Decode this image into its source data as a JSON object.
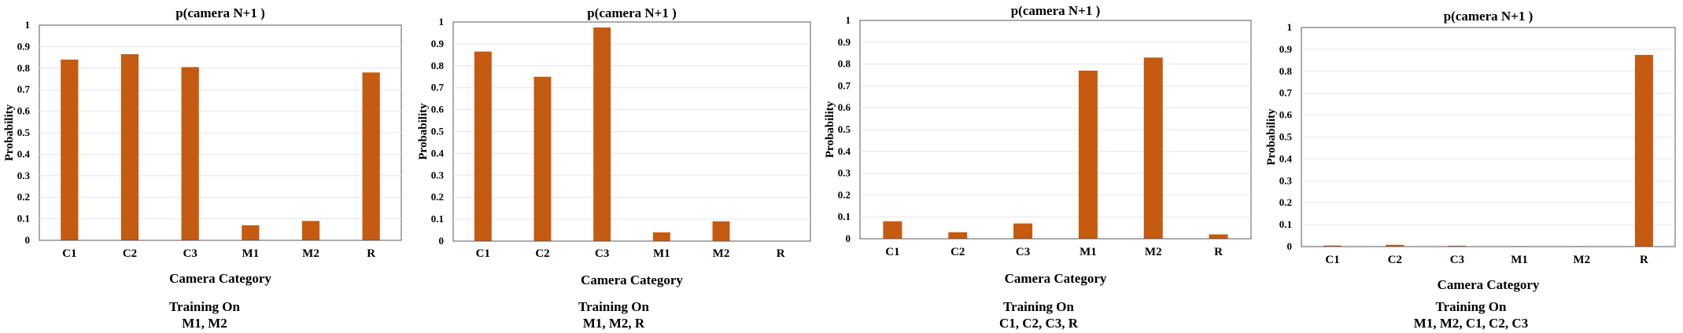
{
  "chart_data": [
    {
      "type": "bar",
      "title": "p(camera N+1 )",
      "xlabel": "Camera Category",
      "ylabel": "Probability",
      "categories": [
        "C1",
        "C2",
        "C3",
        "M1",
        "M2",
        "R"
      ],
      "values": [
        0.84,
        0.865,
        0.805,
        0.07,
        0.09,
        0.78
      ],
      "ylim": [
        0,
        1
      ],
      "yticks": [
        "0",
        "0.1",
        "0.2",
        "0.3",
        "0.4",
        "0.5",
        "0.6",
        "0.7",
        "0.8",
        "0.9",
        "1"
      ],
      "grid": true,
      "caption": [
        "Training On",
        "M1, M2"
      ],
      "bar_color": "#c55a11"
    },
    {
      "type": "bar",
      "title": "p(camera N+1 )",
      "xlabel": "Camera Category",
      "ylabel": "Probability",
      "categories": [
        "C1",
        "C2",
        "C3",
        "M1",
        "M2",
        "R"
      ],
      "values": [
        0.865,
        0.75,
        0.975,
        0.04,
        0.09,
        0.0
      ],
      "ylim": [
        0,
        1
      ],
      "yticks": [
        "0",
        "0.1",
        "0.2",
        "0.3",
        "0.4",
        "0.5",
        "0.6",
        "0.7",
        "0.8",
        "0.9",
        "1"
      ],
      "grid": true,
      "caption": [
        "Training On",
        "M1, M2, R"
      ],
      "bar_color": "#c55a11"
    },
    {
      "type": "bar",
      "title": "p(camera N+1 )",
      "xlabel": "Camera Category",
      "ylabel": "Probability",
      "categories": [
        "C1",
        "C2",
        "C3",
        "M1",
        "M2",
        "R"
      ],
      "values": [
        0.08,
        0.03,
        0.07,
        0.77,
        0.83,
        0.02
      ],
      "ylim": [
        0,
        1
      ],
      "yticks": [
        "0",
        "0.1",
        "0.2",
        "0.3",
        "0.4",
        "0.5",
        "0.6",
        "0.7",
        "0.8",
        "0.9",
        "1"
      ],
      "grid": true,
      "caption": [
        "Training On",
        "C1, C2, C3, R"
      ],
      "bar_color": "#c55a11"
    },
    {
      "type": "bar",
      "title": "p(camera N+1 )",
      "xlabel": "Camera Category",
      "ylabel": "Probability",
      "categories": [
        "C1",
        "C2",
        "C3",
        "M1",
        "M2",
        "R"
      ],
      "values": [
        0.005,
        0.008,
        0.004,
        0.002,
        0.002,
        0.875
      ],
      "ylim": [
        0,
        1
      ],
      "yticks": [
        "0",
        "0.1",
        "0.2",
        "0.3",
        "0.4",
        "0.5",
        "0.6",
        "0.7",
        "0.8",
        "0.9",
        "1"
      ],
      "grid": true,
      "caption": [
        "Training On",
        "M1, M2, C1, C2, C3"
      ],
      "bar_color": "#c55a11"
    }
  ]
}
